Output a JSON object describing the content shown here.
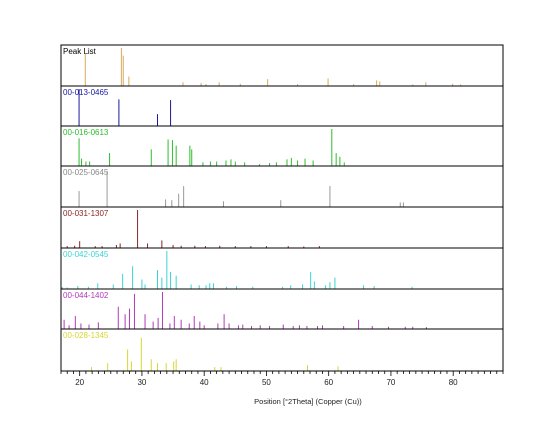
{
  "chart_data": {
    "type": "bar",
    "x_label": "Position [°2Theta] (Copper (Cu))",
    "xlim": [
      17,
      88
    ],
    "x_ticks": [
      20,
      30,
      40,
      50,
      60,
      70,
      80
    ],
    "panels": [
      {
        "name": "Peak List",
        "color": "#d9a95b",
        "label_color": "#000000",
        "peaks": [
          [
            20.9,
            0.85
          ],
          [
            26.7,
            1.0
          ],
          [
            27.0,
            0.8
          ],
          [
            27.9,
            0.25
          ],
          [
            36.6,
            0.1
          ],
          [
            39.5,
            0.08
          ],
          [
            40.3,
            0.05
          ],
          [
            42.4,
            0.1
          ],
          [
            45.8,
            0.06
          ],
          [
            50.2,
            0.18
          ],
          [
            55.0,
            0.05
          ],
          [
            59.9,
            0.2
          ],
          [
            64.0,
            0.05
          ],
          [
            67.7,
            0.15
          ],
          [
            68.2,
            0.12
          ],
          [
            73.5,
            0.04
          ],
          [
            75.6,
            0.1
          ],
          [
            79.9,
            0.06
          ],
          [
            81.2,
            0.04
          ]
        ]
      },
      {
        "name": "00-013-0465",
        "color": "#1a1aa0",
        "label_color": "#1a1aa0",
        "peaks": [
          [
            19.9,
            1.0
          ],
          [
            26.3,
            0.72
          ],
          [
            32.5,
            0.32
          ],
          [
            34.6,
            0.7
          ]
        ]
      },
      {
        "name": "00-016-0613",
        "color": "#2ebd2e",
        "label_color": "#2ebd2e",
        "peaks": [
          [
            19.9,
            0.75
          ],
          [
            20.3,
            0.2
          ],
          [
            21.0,
            0.12
          ],
          [
            21.6,
            0.12
          ],
          [
            24.8,
            0.35
          ],
          [
            31.5,
            0.45
          ],
          [
            34.2,
            0.72
          ],
          [
            34.9,
            0.7
          ],
          [
            35.5,
            0.55
          ],
          [
            37.7,
            0.55
          ],
          [
            38.0,
            0.45
          ],
          [
            39.8,
            0.1
          ],
          [
            41.0,
            0.12
          ],
          [
            42.0,
            0.12
          ],
          [
            43.5,
            0.15
          ],
          [
            44.3,
            0.18
          ],
          [
            45.0,
            0.12
          ],
          [
            46.5,
            0.1
          ],
          [
            48.9,
            0.05
          ],
          [
            50.5,
            0.08
          ],
          [
            51.6,
            0.1
          ],
          [
            53.3,
            0.18
          ],
          [
            54.0,
            0.22
          ],
          [
            55.0,
            0.15
          ],
          [
            56.2,
            0.2
          ],
          [
            57.5,
            0.15
          ],
          [
            60.5,
            1.0
          ],
          [
            61.2,
            0.35
          ],
          [
            61.8,
            0.25
          ],
          [
            62.5,
            0.1
          ]
        ]
      },
      {
        "name": "00-025-0645",
        "color": "#999999",
        "label_color": "#888888",
        "peaks": [
          [
            19.9,
            0.42
          ],
          [
            24.4,
            0.95
          ],
          [
            33.8,
            0.2
          ],
          [
            34.8,
            0.18
          ],
          [
            35.9,
            0.35
          ],
          [
            36.7,
            0.55
          ],
          [
            43.1,
            0.15
          ],
          [
            52.3,
            0.18
          ],
          [
            60.2,
            0.55
          ],
          [
            71.5,
            0.12
          ],
          [
            72.0,
            0.12
          ]
        ]
      },
      {
        "name": "00-031-1307",
        "color": "#8b2525",
        "label_color": "#8b2525",
        "peaks": [
          [
            18.0,
            0.05
          ],
          [
            19.2,
            0.06
          ],
          [
            20.0,
            0.18
          ],
          [
            22.5,
            0.05
          ],
          [
            23.6,
            0.05
          ],
          [
            25.9,
            0.08
          ],
          [
            26.5,
            0.12
          ],
          [
            29.3,
            1.0
          ],
          [
            30.9,
            0.12
          ],
          [
            33.2,
            0.2
          ],
          [
            35.0,
            0.08
          ],
          [
            36.3,
            0.06
          ],
          [
            38.5,
            0.06
          ],
          [
            40.2,
            0.05
          ],
          [
            42.5,
            0.06
          ],
          [
            45.0,
            0.05
          ],
          [
            47.5,
            0.05
          ],
          [
            50.0,
            0.05
          ],
          [
            53.5,
            0.05
          ],
          [
            56.0,
            0.04
          ],
          [
            58.5,
            0.05
          ]
        ]
      },
      {
        "name": "00-042-0545",
        "color": "#3bd4d4",
        "label_color": "#3bd4d4",
        "peaks": [
          [
            17.2,
            0.05
          ],
          [
            18.0,
            0.04
          ],
          [
            19.7,
            0.08
          ],
          [
            21.4,
            0.06
          ],
          [
            22.9,
            0.15
          ],
          [
            25.4,
            0.12
          ],
          [
            26.9,
            0.4
          ],
          [
            28.5,
            0.6
          ],
          [
            30.0,
            0.25
          ],
          [
            30.5,
            0.12
          ],
          [
            32.5,
            0.5
          ],
          [
            33.2,
            0.3
          ],
          [
            34.0,
            1.0
          ],
          [
            34.6,
            0.45
          ],
          [
            35.5,
            0.35
          ],
          [
            37.9,
            0.12
          ],
          [
            39.2,
            0.1
          ],
          [
            40.3,
            0.1
          ],
          [
            40.9,
            0.15
          ],
          [
            41.5,
            0.15
          ],
          [
            43.6,
            0.06
          ],
          [
            45.2,
            0.08
          ],
          [
            47.8,
            0.06
          ],
          [
            52.6,
            0.06
          ],
          [
            53.9,
            0.1
          ],
          [
            55.8,
            0.12
          ],
          [
            57.1,
            0.45
          ],
          [
            57.7,
            0.2
          ],
          [
            59.5,
            0.1
          ],
          [
            60.2,
            0.18
          ],
          [
            61.0,
            0.3
          ],
          [
            65.6,
            0.1
          ],
          [
            67.3,
            0.08
          ],
          [
            73.4,
            0.06
          ]
        ]
      },
      {
        "name": "00-044-1402",
        "color": "#b03ab8",
        "label_color": "#b03ab8",
        "peaks": [
          [
            17.5,
            0.25
          ],
          [
            18.3,
            0.1
          ],
          [
            19.3,
            0.35
          ],
          [
            20.2,
            0.15
          ],
          [
            21.5,
            0.12
          ],
          [
            23.0,
            0.18
          ],
          [
            26.2,
            0.6
          ],
          [
            27.3,
            0.4
          ],
          [
            28.0,
            0.55
          ],
          [
            28.8,
            0.95
          ],
          [
            30.5,
            0.4
          ],
          [
            31.8,
            0.2
          ],
          [
            32.6,
            0.3
          ],
          [
            33.3,
            1.0
          ],
          [
            34.5,
            0.15
          ],
          [
            35.2,
            0.35
          ],
          [
            36.3,
            0.25
          ],
          [
            37.6,
            0.15
          ],
          [
            38.4,
            0.35
          ],
          [
            39.3,
            0.2
          ],
          [
            40.0,
            0.1
          ],
          [
            42.2,
            0.15
          ],
          [
            43.2,
            0.4
          ],
          [
            44.0,
            0.15
          ],
          [
            45.5,
            0.1
          ],
          [
            46.2,
            0.12
          ],
          [
            47.6,
            0.08
          ],
          [
            49.0,
            0.1
          ],
          [
            50.5,
            0.08
          ],
          [
            52.7,
            0.12
          ],
          [
            54.3,
            0.08
          ],
          [
            55.3,
            0.1
          ],
          [
            56.5,
            0.08
          ],
          [
            58.2,
            0.08
          ],
          [
            59.0,
            0.1
          ],
          [
            62.4,
            0.08
          ],
          [
            64.8,
            0.25
          ],
          [
            67.0,
            0.08
          ],
          [
            69.6,
            0.06
          ],
          [
            72.3,
            0.06
          ],
          [
            73.5,
            0.06
          ],
          [
            75.7,
            0.05
          ]
        ]
      },
      {
        "name": "00-028-1345",
        "color": "#d8d630",
        "label_color": "#d8d630",
        "peaks": [
          [
            21.9,
            0.1
          ],
          [
            24.5,
            0.2
          ],
          [
            27.7,
            0.55
          ],
          [
            28.3,
            0.25
          ],
          [
            29.9,
            0.85
          ],
          [
            31.5,
            0.3
          ],
          [
            32.5,
            0.2
          ],
          [
            33.9,
            0.2
          ],
          [
            35.1,
            0.25
          ],
          [
            35.5,
            0.3
          ],
          [
            41.7,
            0.1
          ],
          [
            42.7,
            0.1
          ],
          [
            56.6,
            0.15
          ],
          [
            61.5,
            0.12
          ]
        ]
      }
    ]
  }
}
